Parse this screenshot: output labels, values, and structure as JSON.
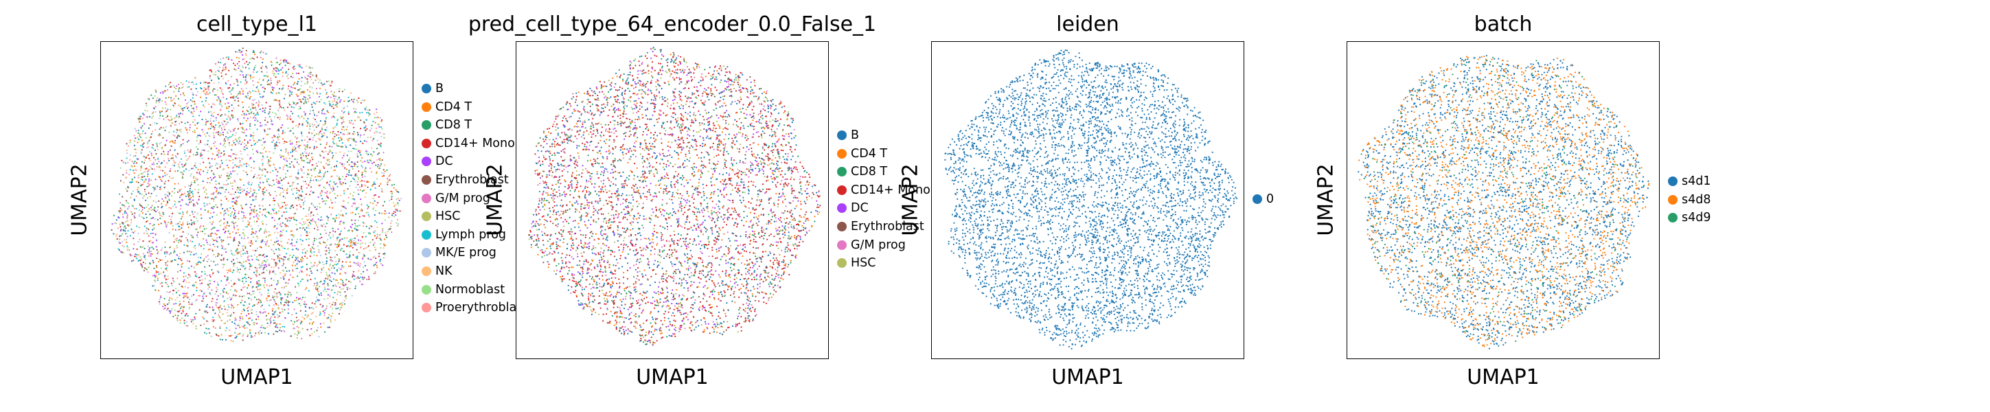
{
  "chart_data": [
    {
      "type": "scatter",
      "title": "cell_type_l1",
      "xlabel": "UMAP1",
      "ylabel": "UMAP2",
      "xticks": [],
      "yticks": [],
      "grid": false,
      "legend_position": "right outside",
      "legend": [
        {
          "label": "B",
          "color": "#1f77b4"
        },
        {
          "label": "CD4 T",
          "color": "#ff7f0e"
        },
        {
          "label": "CD8 T",
          "color": "#279e68"
        },
        {
          "label": "CD14+ Mono",
          "color": "#d62728"
        },
        {
          "label": "DC",
          "color": "#aa40fc"
        },
        {
          "label": "Erythroblast",
          "color": "#8c564b"
        },
        {
          "label": "G/M prog",
          "color": "#e377c2"
        },
        {
          "label": "HSC",
          "color": "#b5bd61"
        },
        {
          "label": "Lymph prog",
          "color": "#17becf"
        },
        {
          "label": "MK/E prog",
          "color": "#aec7e8"
        },
        {
          "label": "NK",
          "color": "#ffbb78"
        },
        {
          "label": "Normoblast",
          "color": "#98df8a"
        },
        {
          "label": "Proerythroblast",
          "color": "#ff9896"
        }
      ]
    },
    {
      "type": "scatter",
      "title": "pred_cell_type_64_encoder_0.0_False_1",
      "xlabel": "UMAP1",
      "ylabel": "UMAP2",
      "xticks": [],
      "yticks": [],
      "grid": false,
      "legend_position": "right outside",
      "legend": [
        {
          "label": "B",
          "color": "#1f77b4"
        },
        {
          "label": "CD4 T",
          "color": "#ff7f0e"
        },
        {
          "label": "CD8 T",
          "color": "#279e68"
        },
        {
          "label": "CD14+ Mono",
          "color": "#d62728"
        },
        {
          "label": "DC",
          "color": "#aa40fc"
        },
        {
          "label": "Erythroblast",
          "color": "#8c564b"
        },
        {
          "label": "G/M prog",
          "color": "#e377c2"
        },
        {
          "label": "HSC",
          "color": "#b5bd61"
        }
      ]
    },
    {
      "type": "scatter",
      "title": "leiden",
      "xlabel": "UMAP1",
      "ylabel": "UMAP2",
      "xticks": [],
      "yticks": [],
      "grid": false,
      "legend_position": "right outside",
      "legend": [
        {
          "label": "0",
          "color": "#1f77b4"
        }
      ]
    },
    {
      "type": "scatter",
      "title": "batch",
      "xlabel": "UMAP1",
      "ylabel": "UMAP2",
      "xticks": [],
      "yticks": [],
      "grid": false,
      "legend_position": "right outside",
      "legend": [
        {
          "label": "s4d1",
          "color": "#1f77b4"
        },
        {
          "label": "s4d8",
          "color": "#ff7f0e"
        },
        {
          "label": "s4d9",
          "color": "#279e68"
        }
      ]
    }
  ]
}
